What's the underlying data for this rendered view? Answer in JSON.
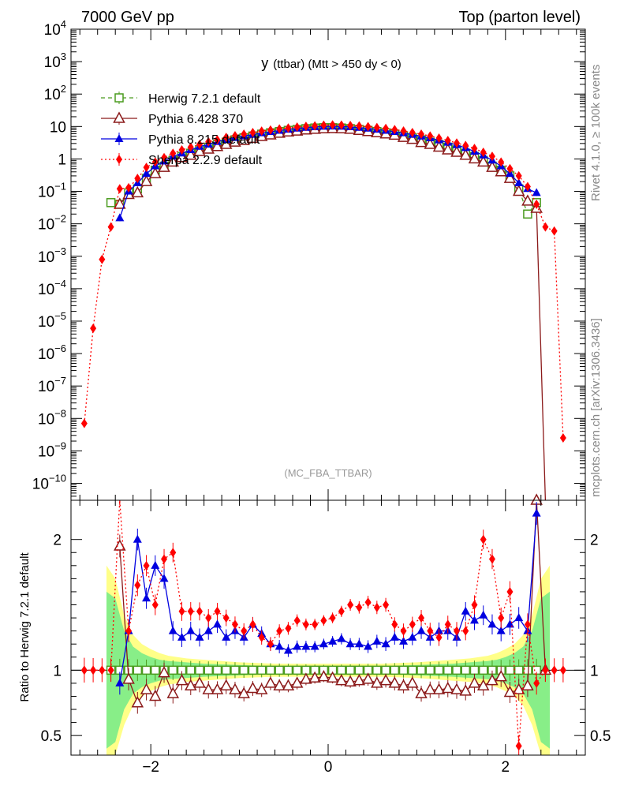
{
  "header": {
    "left": "7000 GeV pp",
    "right": "Top (parton level)"
  },
  "side": {
    "rivet": "Rivet 4.1.0, ≥ 100k events",
    "mcplots": "mcplots.cern.ch [arXiv:1306.3436]"
  },
  "chart_data": {
    "type": "line",
    "title": "y (ttbar) (Mtt > 450 dy < 0)",
    "title_main": "y",
    "title_sub": "(ttbar) (Mtt > 450 dy < 0)",
    "analysis_label": "(MC_FBA_TTBAR)",
    "xlabel": "",
    "xlim": [
      -2.9,
      2.9
    ],
    "x_ticks": [
      -2,
      0,
      2
    ],
    "x_tick_labels": [
      "−2",
      "0",
      "2"
    ],
    "upper": {
      "yscale": "log",
      "ylim": [
        3e-11,
        10000
      ],
      "y_tick_exponents": [
        4,
        3,
        2,
        1,
        0,
        -1,
        -2,
        -3,
        -4,
        -5,
        -6,
        -7,
        -8,
        -9,
        -10
      ],
      "y_tick_labels": [
        "10^4",
        "10^3",
        "10^2",
        "10",
        "1",
        "10^-1",
        "10^-2",
        "10^-3",
        "10^-4",
        "10^-5",
        "10^-6",
        "10^-7",
        "10^-8",
        "10^-9",
        "10^-10"
      ]
    },
    "lower": {
      "ylabel": "Ratio to Herwig 7.2.1 default",
      "ylim": [
        0.35,
        2.3
      ],
      "y_ticks": [
        0.5,
        1,
        2
      ],
      "y_tick_labels": [
        "0.5",
        "1",
        "2"
      ],
      "band_x": [
        -2.5,
        -2.4,
        -2.3,
        -2.2,
        -2.1,
        -2.0,
        -1.9,
        -1.8,
        -1.6,
        -1.4,
        -1.2,
        -1.0,
        -0.8,
        -0.6,
        -0.4,
        -0.2,
        0.0,
        0.2,
        0.4,
        0.6,
        0.8,
        1.0,
        1.2,
        1.4,
        1.6,
        1.8,
        1.9,
        2.0,
        2.1,
        2.2,
        2.3,
        2.4,
        2.5
      ],
      "band_green": [
        0.6,
        0.55,
        0.3,
        0.18,
        0.13,
        0.1,
        0.08,
        0.07,
        0.06,
        0.05,
        0.045,
        0.04,
        0.035,
        0.03,
        0.03,
        0.03,
        0.03,
        0.03,
        0.03,
        0.03,
        0.035,
        0.04,
        0.045,
        0.05,
        0.06,
        0.07,
        0.08,
        0.1,
        0.13,
        0.18,
        0.3,
        0.55,
        0.6
      ],
      "band_yellow": [
        0.8,
        0.7,
        0.42,
        0.27,
        0.2,
        0.16,
        0.13,
        0.11,
        0.09,
        0.08,
        0.07,
        0.06,
        0.055,
        0.05,
        0.05,
        0.05,
        0.05,
        0.05,
        0.05,
        0.05,
        0.055,
        0.06,
        0.07,
        0.08,
        0.09,
        0.11,
        0.13,
        0.16,
        0.2,
        0.27,
        0.42,
        0.7,
        0.8
      ]
    },
    "legend_position": "top-left",
    "series": [
      {
        "name": "Herwig 7.2.1 default",
        "color": "#4a9b1e",
        "marker": "open-square",
        "line": "dashed",
        "x": [
          -2.45,
          -2.35,
          -2.25,
          -2.15,
          -2.05,
          -1.95,
          -1.85,
          -1.75,
          -1.65,
          -1.55,
          -1.45,
          -1.35,
          -1.25,
          -1.15,
          -1.05,
          -0.95,
          -0.85,
          -0.75,
          -0.65,
          -0.55,
          -0.45,
          -0.35,
          -0.25,
          -0.15,
          -0.05,
          0.05,
          0.15,
          0.25,
          0.35,
          0.45,
          0.55,
          0.65,
          0.75,
          0.85,
          0.95,
          1.05,
          1.15,
          1.25,
          1.35,
          1.45,
          1.55,
          1.65,
          1.75,
          1.85,
          1.95,
          2.05,
          2.15,
          2.25,
          2.35
        ],
        "y": [
          0.045,
          0.04,
          0.09,
          0.12,
          0.25,
          0.45,
          0.6,
          0.9,
          1.2,
          1.5,
          1.9,
          2.3,
          2.8,
          3.3,
          3.9,
          4.5,
          5.1,
          5.8,
          6.4,
          7.0,
          7.6,
          8.1,
          8.6,
          9.0,
          9.2,
          9.2,
          9.0,
          8.6,
          8.1,
          7.6,
          7.0,
          6.4,
          5.8,
          5.1,
          4.5,
          3.9,
          3.3,
          2.8,
          2.3,
          1.9,
          1.5,
          1.2,
          0.9,
          0.6,
          0.45,
          0.3,
          0.12,
          0.02,
          0.045
        ],
        "ratio": [
          1.0,
          1.0,
          1.0,
          1.0,
          1.0,
          1.0,
          1.0,
          1.0,
          1.0,
          1.0,
          1.0,
          1.0,
          1.0,
          1.0,
          1.0,
          1.0,
          1.0,
          1.0,
          1.0,
          1.0,
          1.0,
          1.0,
          1.0,
          1.0,
          1.0,
          1.0,
          1.0,
          1.0,
          1.0,
          1.0,
          1.0,
          1.0,
          1.0,
          1.0,
          1.0,
          1.0,
          1.0,
          1.0,
          1.0,
          1.0,
          1.0,
          1.0,
          1.0,
          1.0,
          1.0,
          1.0,
          1.0,
          1.0,
          1.0
        ]
      },
      {
        "name": "Pythia 6.428 370",
        "color": "#8b1a1a",
        "marker": "open-triangle",
        "line": "solid",
        "x": [
          -2.35,
          -2.25,
          -2.15,
          -2.05,
          -1.95,
          -1.85,
          -1.75,
          -1.65,
          -1.55,
          -1.45,
          -1.35,
          -1.25,
          -1.15,
          -1.05,
          -0.95,
          -0.85,
          -0.75,
          -0.65,
          -0.55,
          -0.45,
          -0.35,
          -0.25,
          -0.15,
          -0.05,
          0.05,
          0.15,
          0.25,
          0.35,
          0.45,
          0.55,
          0.65,
          0.75,
          0.85,
          0.95,
          1.05,
          1.15,
          1.25,
          1.35,
          1.45,
          1.55,
          1.65,
          1.75,
          1.85,
          1.95,
          2.05,
          2.15,
          2.25,
          2.35,
          2.45
        ],
        "y": [
          0.04,
          0.08,
          0.09,
          0.2,
          0.35,
          0.55,
          0.8,
          1.1,
          1.3,
          1.7,
          2.0,
          2.4,
          2.8,
          3.3,
          3.7,
          4.3,
          4.9,
          5.5,
          6.2,
          6.8,
          7.2,
          7.8,
          8.2,
          8.5,
          8.6,
          8.5,
          8.2,
          7.6,
          7.0,
          6.4,
          5.9,
          5.4,
          4.6,
          4.0,
          3.2,
          2.8,
          2.3,
          1.9,
          1.6,
          1.3,
          1.0,
          0.8,
          0.55,
          0.4,
          0.25,
          0.1,
          0.05,
          0.03,
          0.0
        ],
        "ratio": [
          1.95,
          0.93,
          0.75,
          0.85,
          0.8,
          0.98,
          0.82,
          0.92,
          0.88,
          0.9,
          0.85,
          0.85,
          0.88,
          0.85,
          0.82,
          0.86,
          0.85,
          0.9,
          0.88,
          0.88,
          0.9,
          0.93,
          0.94,
          0.95,
          0.94,
          0.92,
          0.91,
          0.92,
          0.93,
          0.9,
          0.92,
          0.9,
          0.88,
          0.9,
          0.82,
          0.85,
          0.85,
          0.86,
          0.85,
          0.84,
          0.9,
          0.88,
          0.92,
          0.95,
          0.83,
          0.85,
          0.88,
          2.3,
          1.0
        ]
      },
      {
        "name": "Pythia 8.215 default",
        "color": "#0000e0",
        "marker": "filled-triangle",
        "line": "solid",
        "x": [
          -2.35,
          -2.25,
          -2.15,
          -2.05,
          -1.95,
          -1.85,
          -1.75,
          -1.65,
          -1.55,
          -1.45,
          -1.35,
          -1.25,
          -1.15,
          -1.05,
          -0.95,
          -0.85,
          -0.75,
          -0.65,
          -0.55,
          -0.45,
          -0.35,
          -0.25,
          -0.15,
          -0.05,
          0.05,
          0.15,
          0.25,
          0.35,
          0.45,
          0.55,
          0.65,
          0.75,
          0.85,
          0.95,
          1.05,
          1.15,
          1.25,
          1.35,
          1.45,
          1.55,
          1.65,
          1.75,
          1.85,
          1.95,
          2.05,
          2.15,
          2.25,
          2.35
        ],
        "y": [
          0.015,
          0.1,
          0.18,
          0.35,
          0.6,
          0.85,
          1.2,
          1.5,
          1.9,
          2.4,
          2.8,
          3.4,
          3.9,
          4.5,
          5.1,
          5.6,
          6.3,
          6.9,
          7.5,
          8.1,
          8.7,
          9.2,
          9.7,
          10.0,
          10.1,
          10.0,
          9.7,
          9.2,
          8.7,
          8.1,
          7.5,
          6.9,
          6.3,
          5.6,
          5.0,
          4.4,
          3.8,
          3.2,
          2.7,
          2.2,
          1.7,
          1.3,
          0.9,
          0.6,
          0.35,
          0.18,
          0.12,
          0.09
        ],
        "ratio": [
          0.9,
          1.3,
          2.0,
          1.55,
          1.8,
          1.7,
          1.3,
          1.25,
          1.3,
          1.25,
          1.3,
          1.35,
          1.25,
          1.3,
          1.25,
          1.35,
          1.28,
          1.2,
          1.18,
          1.15,
          1.18,
          1.18,
          1.18,
          1.2,
          1.22,
          1.24,
          1.2,
          1.2,
          1.18,
          1.22,
          1.2,
          1.25,
          1.22,
          1.25,
          1.3,
          1.25,
          1.3,
          1.3,
          1.25,
          1.45,
          1.38,
          1.42,
          1.35,
          1.3,
          1.35,
          1.4,
          1.3,
          2.2
        ]
      },
      {
        "name": "Sherpa 2.2.9 default",
        "color": "#ff0000",
        "marker": "filled-diamond",
        "line": "dotted",
        "x": [
          -2.75,
          -2.65,
          -2.55,
          -2.45,
          -2.35,
          -2.25,
          -2.15,
          -2.05,
          -1.95,
          -1.85,
          -1.75,
          -1.65,
          -1.55,
          -1.45,
          -1.35,
          -1.25,
          -1.15,
          -1.05,
          -0.95,
          -0.85,
          -0.75,
          -0.65,
          -0.55,
          -0.45,
          -0.35,
          -0.25,
          -0.15,
          -0.05,
          0.05,
          0.15,
          0.25,
          0.35,
          0.45,
          0.55,
          0.65,
          0.75,
          0.85,
          0.95,
          1.05,
          1.15,
          1.25,
          1.35,
          1.45,
          1.55,
          1.65,
          1.75,
          1.85,
          1.95,
          2.05,
          2.15,
          2.25,
          2.35,
          2.45,
          2.55,
          2.65
        ],
        "y": [
          7e-09,
          6e-06,
          0.0008,
          0.008,
          0.12,
          0.13,
          0.25,
          0.55,
          0.8,
          1.1,
          1.5,
          1.9,
          2.3,
          2.8,
          3.4,
          3.9,
          4.6,
          5.2,
          5.8,
          6.5,
          7.2,
          7.8,
          8.4,
          9.0,
          9.6,
          10.1,
          10.5,
          11.0,
          11.2,
          11.1,
          10.8,
          10.4,
          9.9,
          9.3,
          8.7,
          8.0,
          7.3,
          6.5,
          5.8,
          5.1,
          4.4,
          3.7,
          3.1,
          2.6,
          2.1,
          1.6,
          1.2,
          0.8,
          0.5,
          0.3,
          0.14,
          0.04,
          0.008,
          0.006,
          2.5e-09
        ],
        "ratio": [
          1.0,
          1.0,
          1.0,
          1.0,
          2.35,
          1.3,
          1.65,
          1.8,
          1.5,
          1.85,
          1.9,
          1.45,
          1.45,
          1.45,
          1.4,
          1.45,
          1.4,
          1.35,
          1.3,
          1.35,
          1.25,
          1.2,
          1.3,
          1.32,
          1.38,
          1.35,
          1.35,
          1.38,
          1.4,
          1.45,
          1.5,
          1.48,
          1.52,
          1.48,
          1.5,
          1.35,
          1.3,
          1.35,
          1.4,
          1.3,
          1.25,
          1.35,
          1.3,
          1.3,
          1.5,
          2.0,
          1.85,
          1.4,
          1.6,
          0.42,
          1.35,
          0.9,
          1.0,
          1.0,
          1.0
        ]
      }
    ]
  }
}
